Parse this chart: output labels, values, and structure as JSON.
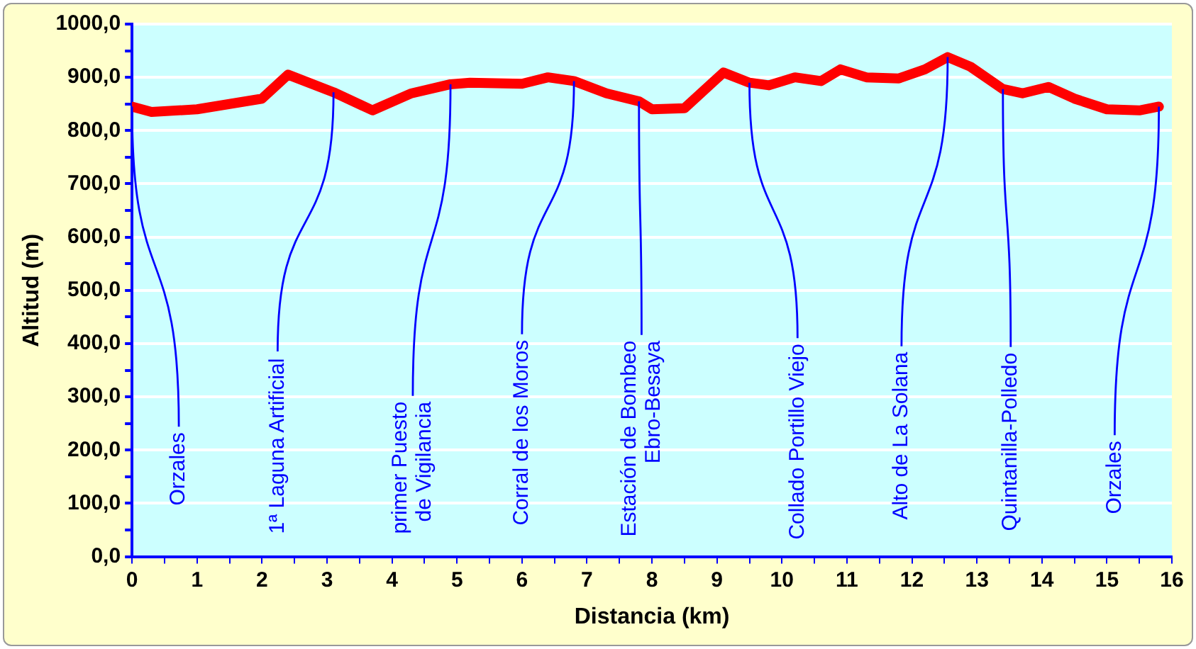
{
  "chart_data": {
    "type": "line",
    "xlabel": "Distancia (km)",
    "ylabel": "Altitud (m)",
    "x": [
      0,
      0.3,
      1.0,
      1.5,
      2.0,
      2.4,
      3.1,
      3.7,
      4.3,
      4.9,
      5.2,
      6.0,
      6.4,
      6.8,
      7.3,
      7.8,
      8.0,
      8.5,
      9.1,
      9.5,
      9.8,
      10.2,
      10.6,
      10.9,
      11.3,
      11.8,
      12.2,
      12.55,
      12.9,
      13.4,
      13.7,
      14.1,
      14.5,
      15.0,
      15.5,
      15.8
    ],
    "series": [
      {
        "color": "#ff0000",
        "values": [
          845,
          835,
          840,
          850,
          860,
          905,
          872,
          838,
          870,
          887,
          890,
          888,
          900,
          893,
          870,
          855,
          840,
          842,
          909,
          890,
          885,
          900,
          893,
          915,
          900,
          898,
          915,
          938,
          920,
          878,
          870,
          882,
          860,
          840,
          838,
          845
        ]
      }
    ],
    "xlim": [
      0,
      16
    ],
    "ylim": [
      0,
      1000
    ],
    "xticks": [
      0,
      {
        "value": 0.5,
        "label": null
      },
      1,
      {
        "value": 1.5,
        "label": null
      },
      2,
      {
        "value": 2.5,
        "label": null
      },
      3,
      {
        "value": 3.5,
        "label": null
      },
      4,
      {
        "value": 4.5,
        "label": null
      },
      5,
      {
        "value": 5.5,
        "label": null
      },
      6,
      {
        "value": 6.5,
        "label": null
      },
      7,
      {
        "value": 7.5,
        "label": null
      },
      8,
      {
        "value": 8.5,
        "label": null
      },
      9,
      {
        "value": 9.5,
        "label": null
      },
      10,
      {
        "value": 10.5,
        "label": null
      },
      11,
      {
        "value": 11.5,
        "label": null
      },
      12,
      {
        "value": 12.5,
        "label": null
      },
      13,
      {
        "value": 13.5,
        "label": null
      },
      14,
      {
        "value": 14.5,
        "label": null
      },
      15,
      {
        "value": 15.5,
        "label": null
      },
      16
    ],
    "yticks": [
      {
        "value": 0,
        "label": "0,0"
      },
      {
        "value": 50,
        "label": null
      },
      {
        "value": 100,
        "label": "100,0"
      },
      {
        "value": 150,
        "label": null
      },
      {
        "value": 200,
        "label": "200,0"
      },
      {
        "value": 250,
        "label": null
      },
      {
        "value": 300,
        "label": "300,0"
      },
      {
        "value": 350,
        "label": null
      },
      {
        "value": 400,
        "label": "400,0"
      },
      {
        "value": 450,
        "label": null
      },
      {
        "value": 500,
        "label": "500,0"
      },
      {
        "value": 550,
        "label": null
      },
      {
        "value": 600,
        "label": "600,0"
      },
      {
        "value": 650,
        "label": null
      },
      {
        "value": 700,
        "label": "700,0"
      },
      {
        "value": 750,
        "label": null
      },
      {
        "value": 800,
        "label": "800,0"
      },
      {
        "value": 850,
        "label": null
      },
      {
        "value": 900,
        "label": "900,0"
      },
      {
        "value": 950,
        "label": null
      },
      {
        "value": 1000,
        "label": "1000,0"
      }
    ],
    "grid": "y",
    "legend": false,
    "marker": "none",
    "line_style": "solid",
    "annotations": [
      {
        "text": "Orzales",
        "x": 0,
        "y": 845
      },
      {
        "text": "1ª Laguna Artificial",
        "x": 3.1,
        "y": 872
      },
      {
        "text": "primer Puesto\nde Vigilancia",
        "x": 4.9,
        "y": 887
      },
      {
        "text": "Corral de los Moros",
        "x": 6.8,
        "y": 893
      },
      {
        "text": "Estación de Bombeo\nEbro-Besaya",
        "x": 7.8,
        "y": 855
      },
      {
        "text": "Collado Portillo Viejo",
        "x": 9.5,
        "y": 890
      },
      {
        "text": "Alto de La Solana",
        "x": 12.55,
        "y": 938
      },
      {
        "text": "Quintanilla-Polledo",
        "x": 13.4,
        "y": 878
      },
      {
        "text": "Orzales",
        "x": 15.8,
        "y": 845
      }
    ]
  }
}
